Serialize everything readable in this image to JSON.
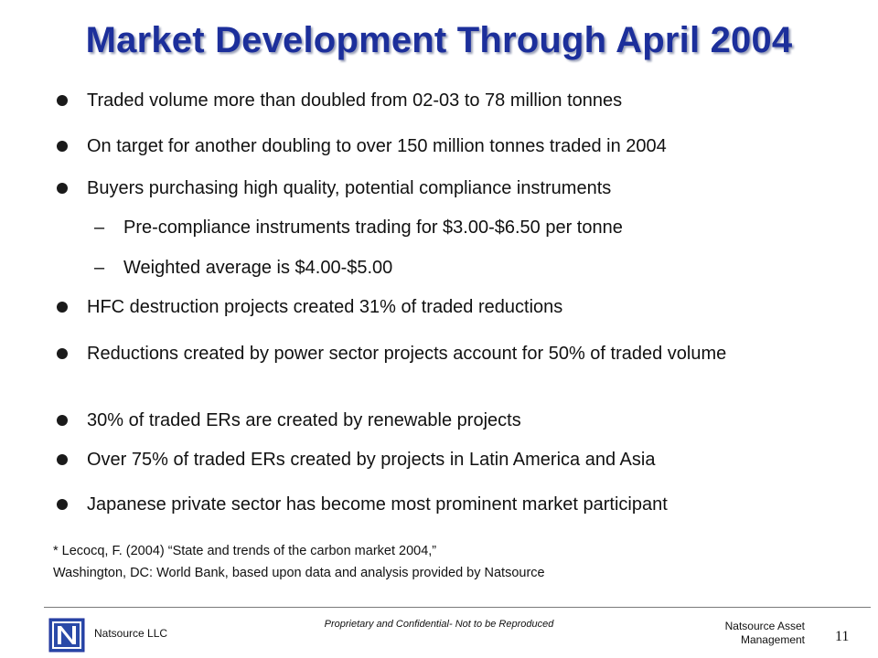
{
  "title": "Market Development Through April 2004",
  "bullets": [
    "Traded volume more than doubled from 02-03 to 78 million tonnes",
    "On target for another doubling to over 150 million tonnes traded in 2004",
    "Buyers purchasing high quality, potential compliance instruments",
    "HFC destruction projects created 31% of traded reductions",
    "Reductions created by power sector projects account for 50% of traded volume",
    "30% of traded ERs are created by renewable projects",
    "Over 75% of traded ERs created by projects in Latin America and Asia",
    "Japanese private sector has become most prominent market participant"
  ],
  "sub_bullets": [
    "Pre-compliance instruments trading for $3.00-$6.50 per tonne",
    "Weighted average is $4.00-$5.00"
  ],
  "sub_marker": "–",
  "footnote": {
    "line1": "* Lecocq, F. (2004) “State and trends of the carbon market 2004,”",
    "line2": "Washington, DC: World Bank, based upon data and analysis provided by Natsource"
  },
  "footer": {
    "company": "Natsource LLC",
    "confidential": "Proprietary and Confidential- Not to be Reproduced",
    "asset_line1": "Natsource Asset",
    "asset_line2": "Management",
    "page_number": "11"
  },
  "colors": {
    "title": "#1c2f9b",
    "logo_blue": "#2a4aa8"
  },
  "icons": [
    "natsource-logo-icon"
  ]
}
